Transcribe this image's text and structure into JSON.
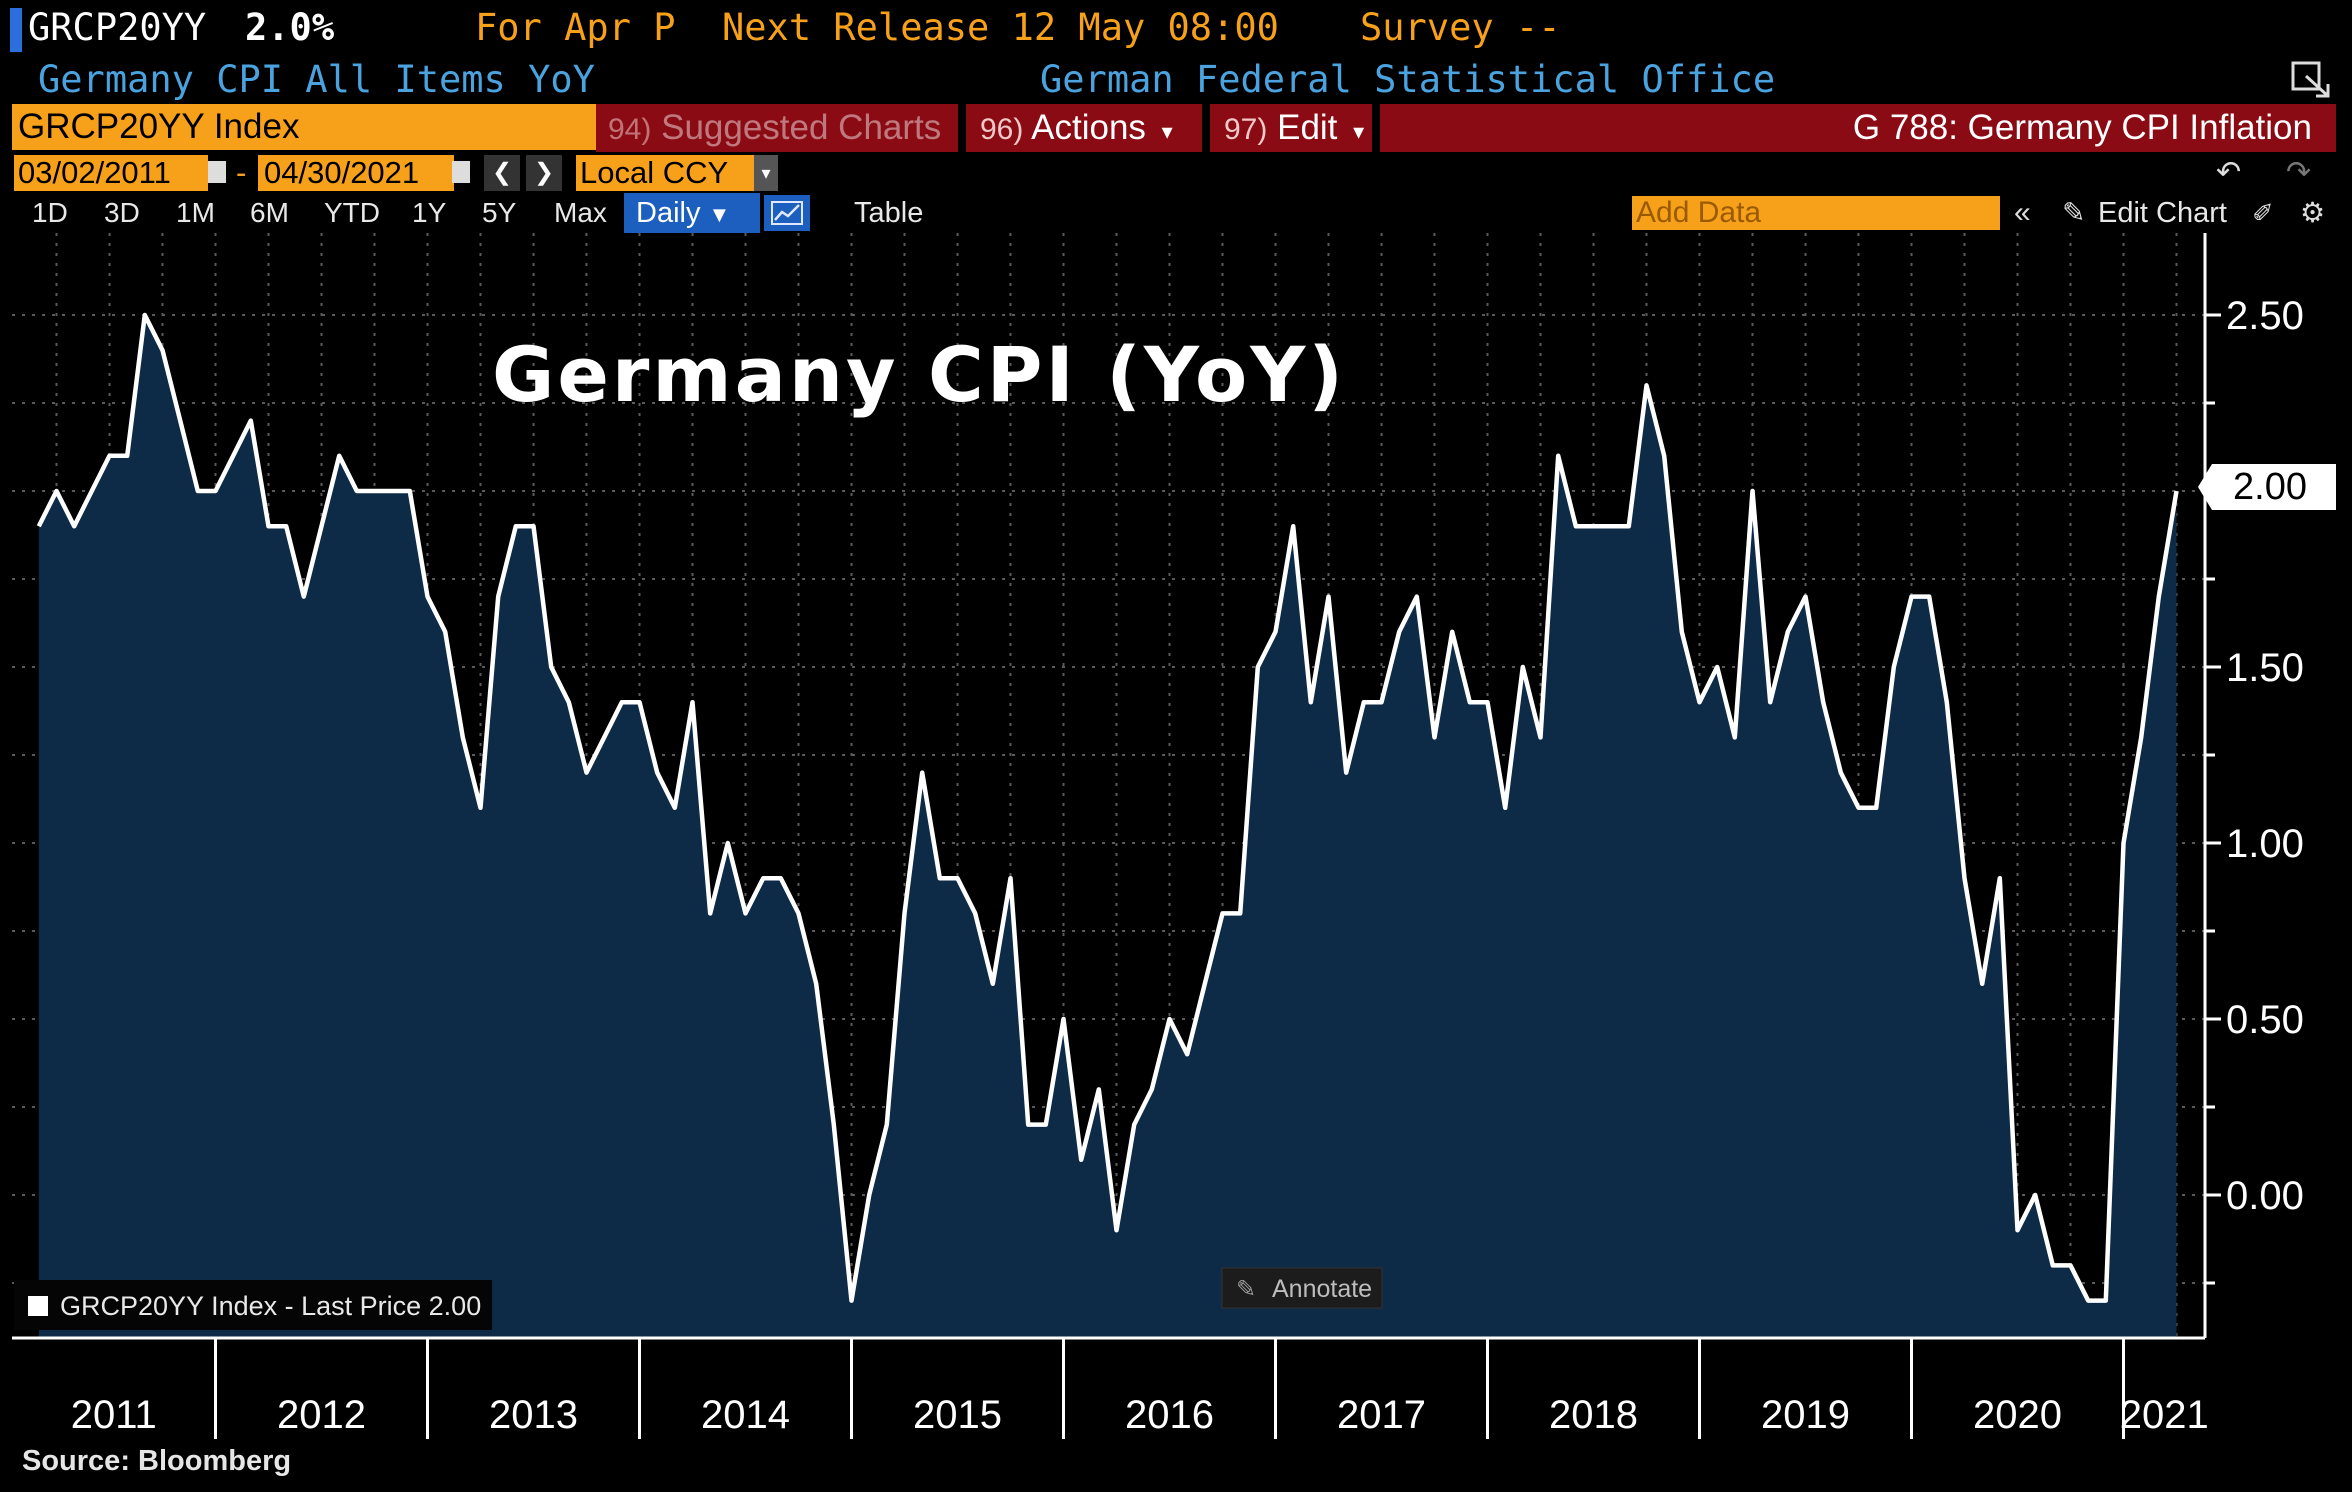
{
  "header": {
    "ticker": "GRCP20YY",
    "last_value": "2.0%",
    "for_period": "For Apr P",
    "next_release": "Next Release 12 May 08:00",
    "survey": "Survey --",
    "description": "Germany CPI All Items YoY",
    "source_agency": "German Federal Statistical Office"
  },
  "toolbar": {
    "security_field": "GRCP20YY Index",
    "suggested_num": "94)",
    "suggested_label": "Suggested Charts",
    "actions_num": "96)",
    "actions_label": "Actions",
    "edit_num": "97)",
    "edit_label": "Edit",
    "chart_title": "G 788: Germany CPI Inflation",
    "start_date": "03/02/2011",
    "end_date": "04/30/2021",
    "date_sep": "-",
    "currency": "Local CCY",
    "ranges": [
      "1D",
      "3D",
      "1M",
      "6M",
      "YTD",
      "1Y",
      "5Y",
      "Max"
    ],
    "frequency": "Daily",
    "table_label": "Table",
    "add_data_placeholder": "Add Data",
    "edit_chart_label": "Edit Chart"
  },
  "legend": {
    "label": "GRCP20YY Index - Last Price 2.00"
  },
  "annotate_label": "Annotate",
  "source_note": "Source: Bloomberg",
  "last_price_tag": "2.00",
  "colors": {
    "background": "#000000",
    "area_fill": "#0d2a47",
    "line": "#ffffff",
    "accent_orange": "#f7a11a",
    "toolbar_red": "#8a0b14",
    "ticker_blue": "#4aa3df",
    "selected_blue": "#1d5fbf"
  },
  "chart_data": {
    "type": "area",
    "title": "Germany CPI (YoY)",
    "x_tick_labels": [
      "2011",
      "2012",
      "2013",
      "2014",
      "2015",
      "2016",
      "2017",
      "2018",
      "2019",
      "2020",
      "2021"
    ],
    "y_tick_labels": [
      "0.00",
      "0.50",
      "1.00",
      "1.50",
      "2.00",
      "2.50"
    ],
    "ylim": [
      -0.4,
      2.7
    ],
    "grid": true,
    "legend_position": "bottom-left",
    "series": [
      {
        "name": "GRCP20YY Index",
        "x_start": "2011-03",
        "frequency": "monthly",
        "values": [
          1.9,
          2.0,
          1.9,
          2.0,
          2.1,
          2.1,
          2.5,
          2.4,
          2.2,
          2.0,
          2.0,
          2.1,
          2.2,
          1.9,
          1.9,
          1.7,
          1.9,
          2.1,
          2.0,
          2.0,
          2.0,
          2.0,
          1.7,
          1.6,
          1.3,
          1.1,
          1.7,
          1.9,
          1.9,
          1.5,
          1.4,
          1.2,
          1.3,
          1.4,
          1.4,
          1.2,
          1.1,
          1.4,
          0.8,
          1.0,
          0.8,
          0.9,
          0.9,
          0.8,
          0.6,
          0.2,
          -0.3,
          0.0,
          0.2,
          0.8,
          1.2,
          0.9,
          0.9,
          0.8,
          0.6,
          0.9,
          0.2,
          0.2,
          0.5,
          0.1,
          0.3,
          -0.1,
          0.2,
          0.3,
          0.5,
          0.4,
          0.6,
          0.8,
          0.8,
          1.5,
          1.6,
          1.9,
          1.4,
          1.7,
          1.2,
          1.4,
          1.4,
          1.6,
          1.7,
          1.3,
          1.6,
          1.4,
          1.4,
          1.1,
          1.5,
          1.3,
          2.1,
          1.9,
          1.9,
          1.9,
          1.9,
          2.3,
          2.1,
          1.6,
          1.4,
          1.5,
          1.3,
          2.0,
          1.4,
          1.6,
          1.7,
          1.4,
          1.2,
          1.1,
          1.1,
          1.5,
          1.7,
          1.7,
          1.4,
          0.9,
          0.6,
          0.9,
          -0.1,
          0.0,
          -0.2,
          -0.2,
          -0.3,
          -0.3,
          1.0,
          1.3,
          1.7,
          2.0
        ]
      }
    ]
  }
}
